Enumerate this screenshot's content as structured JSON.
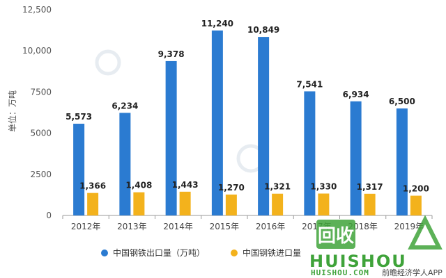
{
  "chart_data": {
    "type": "bar",
    "categories": [
      "2012年",
      "2013年",
      "2014年",
      "2015年",
      "2016年",
      "2017年",
      "2018年",
      "2019年"
    ],
    "series": [
      {
        "name": "中国钢铁出口量（万吨）",
        "color": "#2b7bd1",
        "values": [
          5573,
          6234,
          9378,
          11240,
          10849,
          7541,
          6934,
          6500
        ],
        "labels": [
          "5,573",
          "6,234",
          "9,378",
          "11,240",
          "10,849",
          "7,541",
          "6,934",
          "6,500"
        ]
      },
      {
        "name": "中国钢铁进口量",
        "color": "#f3b21c",
        "values": [
          1366,
          1408,
          1443,
          1270,
          1321,
          1330,
          1317,
          1200
        ],
        "labels": [
          "1,366",
          "1,408",
          "1,443",
          "1,270",
          "1,321",
          "1,330",
          "1,317",
          "1,200"
        ]
      }
    ],
    "ylabel": "单位：万吨",
    "ylim": [
      0,
      12500
    ],
    "yticks": [
      0,
      2500,
      5000,
      7500,
      10000,
      12500
    ],
    "ytick_labels": [
      "0",
      "2500",
      "5000",
      "7500",
      "10,000",
      "12,500"
    ],
    "legend_position": "bottom",
    "grid": false
  },
  "watermark": {
    "brand_text": "HUISHOU",
    "domain_text": "HUISHOU.COM",
    "source_text": "前瞻经济学人APP",
    "logo_glyphs": "回收"
  }
}
